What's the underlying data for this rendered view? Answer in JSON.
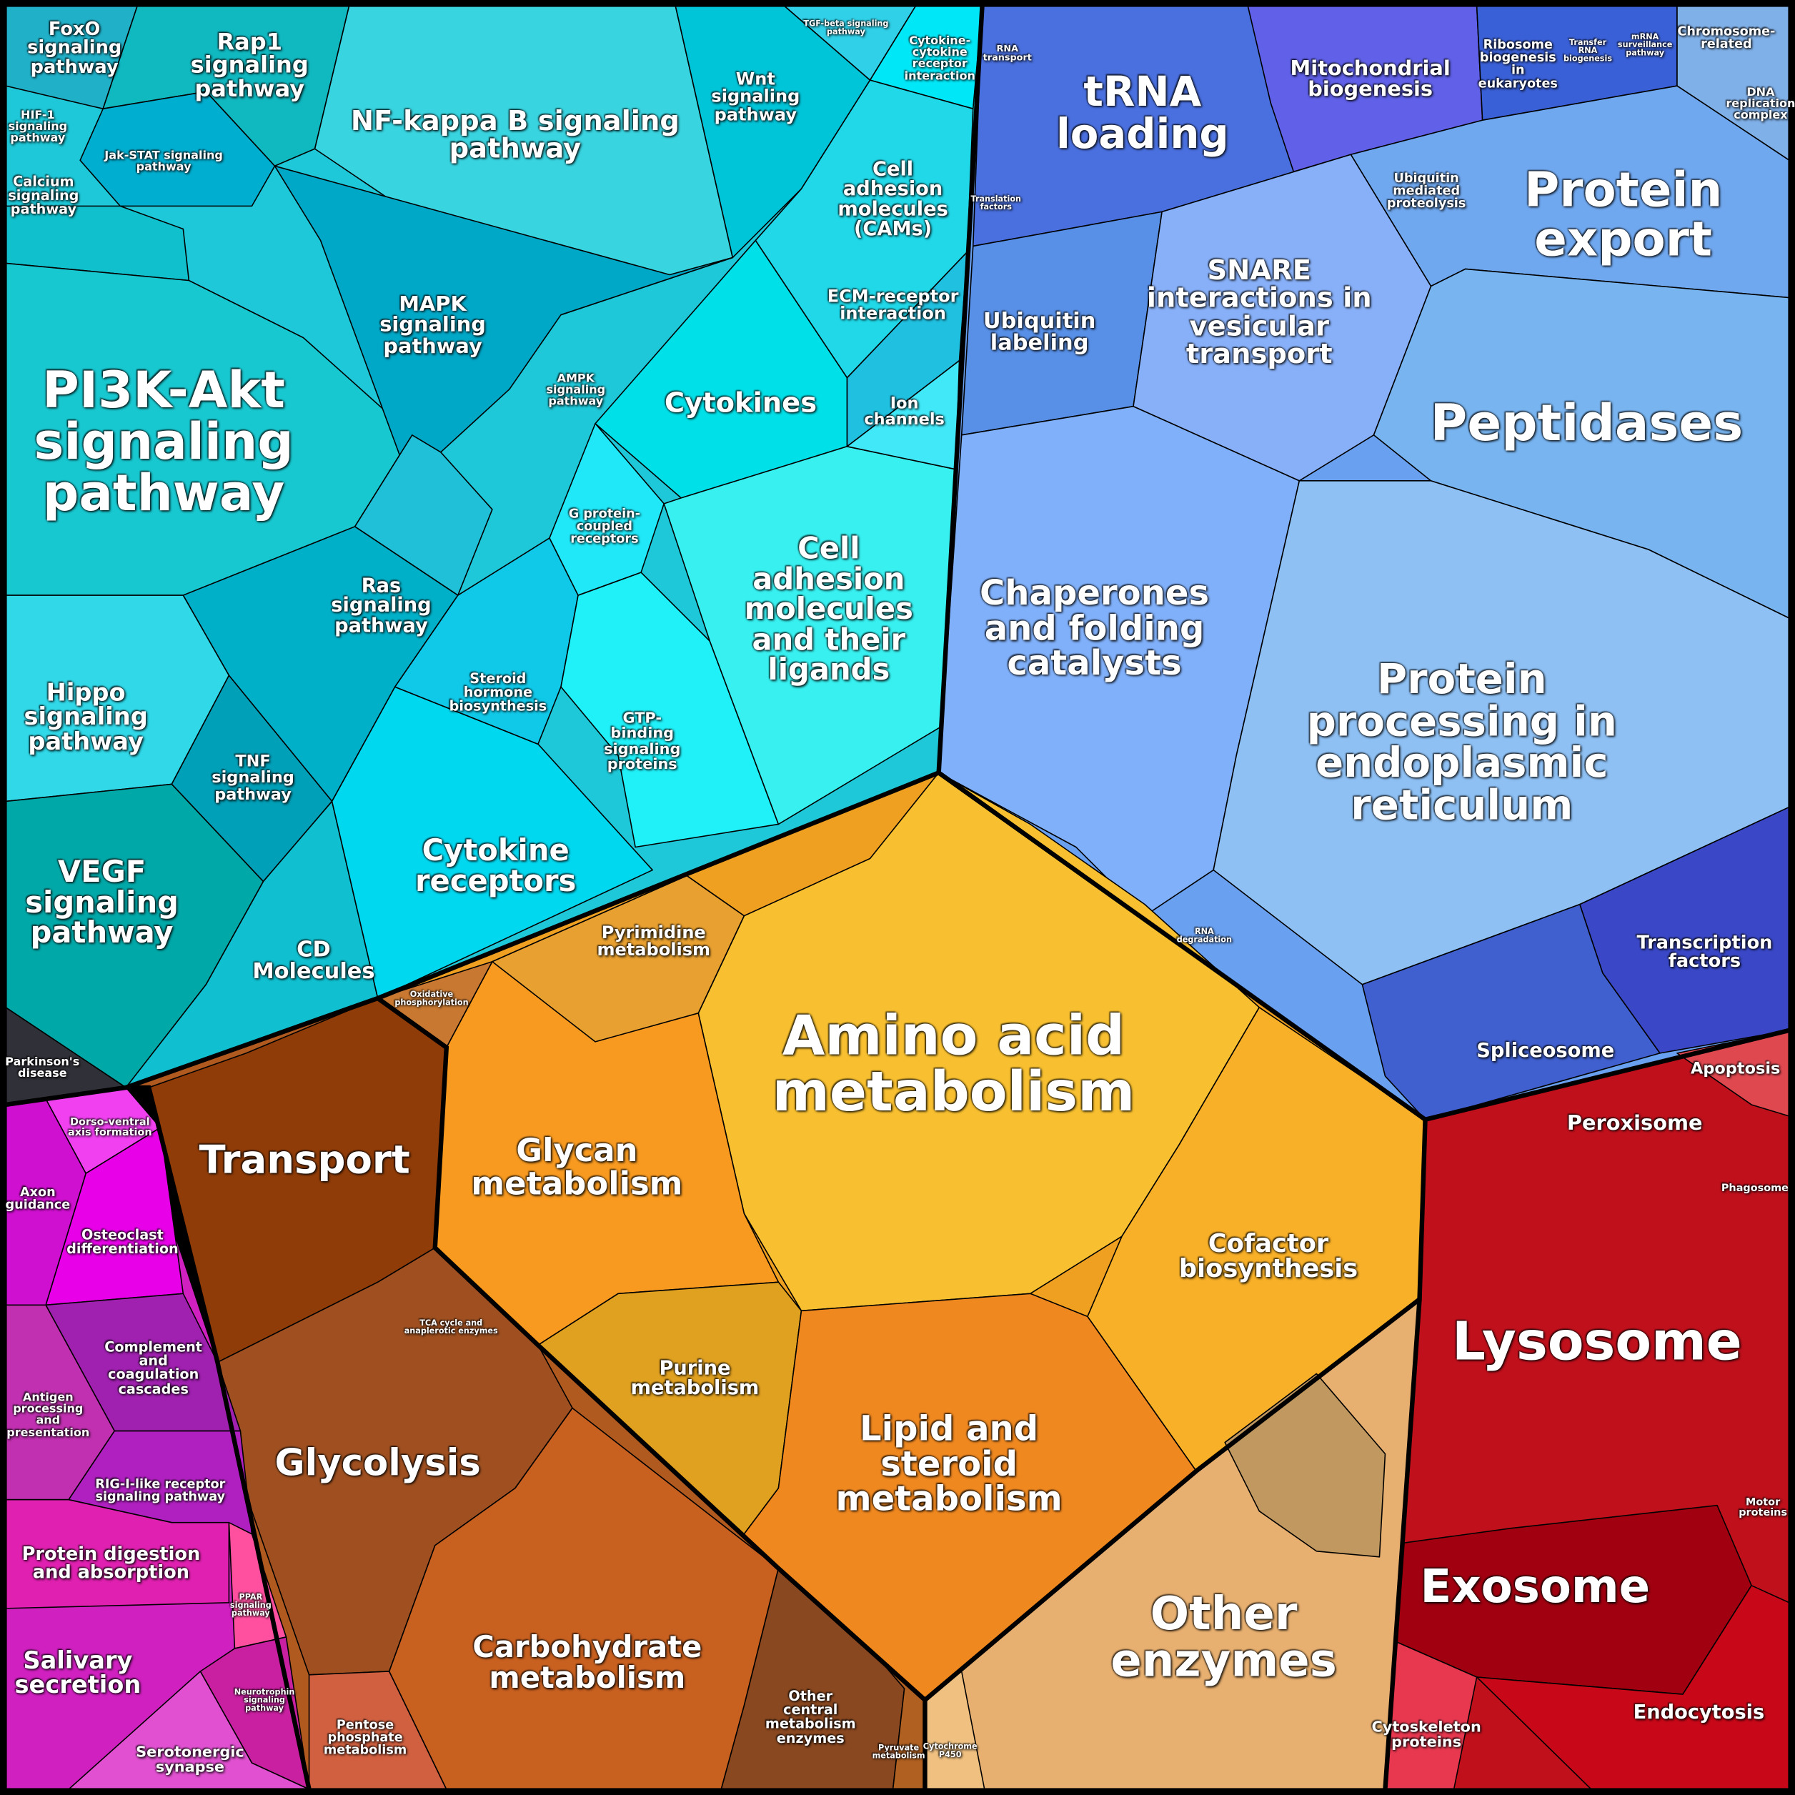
{
  "labels": [
    "FoxO signaling pathway",
    "Rap1 signaling pathway",
    "HIF-1 signaling pathway",
    "Jak-STAT signaling pathway",
    "Calcium signaling pathway",
    "NF-kappa B signaling pathway",
    "Wnt signaling pathway",
    "TGF-beta signaling pathway",
    "Cytokine-cytokine receptor interaction",
    "Cell adhesion molecules (CAMs)",
    "MAPK signaling pathway",
    "AMPK signaling pathway",
    "ECM-receptor interaction",
    "PI3K-Akt signaling pathway",
    "Cytokines",
    "Ion channels",
    "G protein-coupled receptors",
    "Ras signaling pathway",
    "Cell adhesion molecules and their ligands",
    "Steroid hormone biosynthesis",
    "GTP-binding signaling proteins",
    "Hippo signaling pathway",
    "TNF signaling pathway",
    "VEGF signaling pathway",
    "Cytokine receptors",
    "CD Molecules",
    "Parkinson's disease",
    "RNA transport",
    "tRNA loading",
    "Mitochondrial biogenesis",
    "Ribosome biogenesis in eukaryotes",
    "Transfer RNA biogenesis",
    "mRNA surveillance pathway",
    "Chromosome-related",
    "DNA replication complex",
    "Translation factors",
    "Ubiquitin mediated proteolysis",
    "Protein export",
    "SNARE interactions in vesicular transport",
    "Ubiquitin labeling",
    "Peptidases",
    "Chaperones and folding catalysts",
    "Protein processing in endoplasmic reticulum",
    "RNA degradation",
    "Transcription factors",
    "Spliceosome",
    "Apoptosis",
    "Peroxisome",
    "Phagosome",
    "Lysosome",
    "Motor proteins",
    "Exosome",
    "Endocytosis",
    "Cytoskeleton proteins",
    "Pyrimidine metabolism",
    "Oxidative phosphorylation",
    "Amino acid metabolism",
    "Glycan metabolism",
    "Cofactor biosynthesis",
    "Purine metabolism",
    "Lipid and steroid metabolism",
    "Transport",
    "TCA cycle and anaplerotic enzymes",
    "Glycolysis",
    "Carbohydrate metabolism",
    "Pentose phosphate metabolism",
    "Other central metabolism enzymes",
    "Pyruvate metabolism",
    "Cytochrome P450",
    "Other enzymes",
    "Dorso-ventral axis formation",
    "Axon guidance",
    "Osteoclast differentiation",
    "Complement and coagulation cascades",
    "Antigen processing and presentation",
    "RIG-I-like receptor signaling pathway",
    "Protein digestion and absorption",
    "PPAR signaling pathway",
    "Salivary secretion",
    "Neurotrophin signaling pathway",
    "Serotonergic synapse"
  ]
}
